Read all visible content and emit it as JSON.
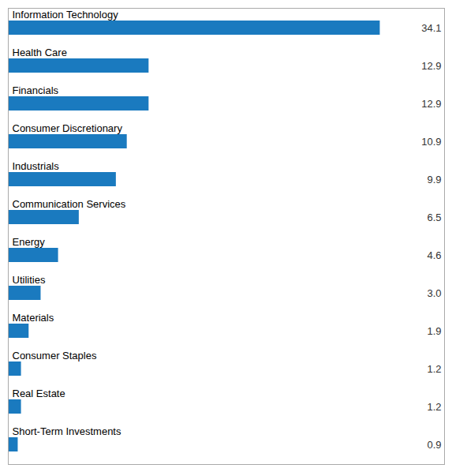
{
  "chart_data": {
    "type": "bar",
    "orientation": "horizontal",
    "categories": [
      "Information Technology",
      "Health Care",
      "Financials",
      "Consumer Discretionary",
      "Industrials",
      "Communication Services",
      "Energy",
      "Utilities",
      "Materials",
      "Consumer Staples",
      "Real Estate",
      "Short-Term Investments"
    ],
    "values": [
      34.1,
      12.9,
      12.9,
      10.9,
      9.9,
      6.5,
      4.6,
      3.0,
      1.9,
      1.2,
      1.2,
      0.9
    ],
    "value_labels": [
      "34.1",
      "12.9",
      "12.9",
      "10.9",
      "9.9",
      "6.5",
      "4.6",
      "3.0",
      "1.9",
      "1.2",
      "1.2",
      "0.9"
    ],
    "color": "#1a7abf",
    "xlim": [
      0,
      40
    ],
    "data_labels": true,
    "tick_labels": false
  }
}
